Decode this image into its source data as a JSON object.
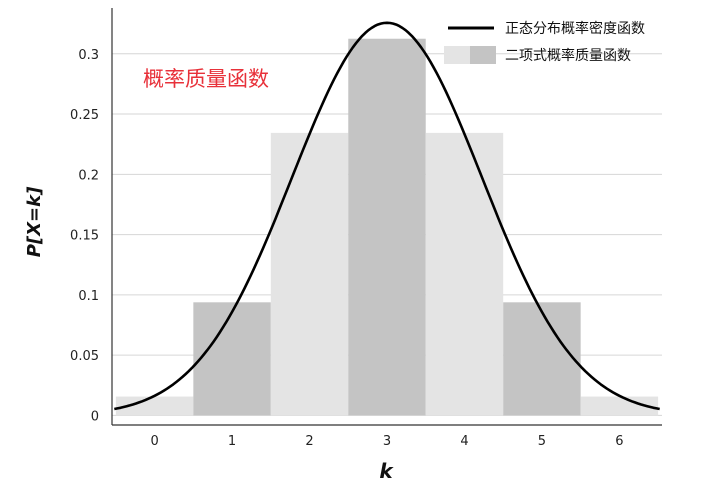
{
  "chart_data": {
    "type": "bar",
    "x": [
      0,
      1,
      2,
      3,
      4,
      5,
      6
    ],
    "x_ticks": [
      "0",
      "1",
      "2",
      "3",
      "4",
      "5",
      "6"
    ],
    "series": [
      {
        "name": "二项式概率质量函数",
        "type": "bar",
        "values": [
          0.0156,
          0.0938,
          0.2344,
          0.3125,
          0.2344,
          0.0938,
          0.0156
        ],
        "colors": [
          "#e4e4e4",
          "#c4c4c4",
          "#e4e4e4",
          "#c4c4c4",
          "#e4e4e4",
          "#c4c4c4",
          "#e4e4e4"
        ]
      },
      {
        "name": "正态分布概率密度函数",
        "type": "line",
        "mean": 3,
        "sd": 1.2247,
        "color": "#000000"
      }
    ],
    "xlabel": "k",
    "ylabel": "P[X=k]",
    "xlim": [
      -0.55,
      6.55
    ],
    "ylim": [
      -0.008,
      0.338
    ],
    "y_ticks": [
      "0",
      "0.05",
      "0.1",
      "0.15",
      "0.2",
      "0.25",
      "0.3"
    ],
    "y_tick_values": [
      0,
      0.05,
      0.1,
      0.15,
      0.2,
      0.25,
      0.3
    ],
    "grid": "horizontal",
    "legend_position": "top-right",
    "annotation": {
      "text": "概率质量函数",
      "color": "#e8313a"
    }
  }
}
